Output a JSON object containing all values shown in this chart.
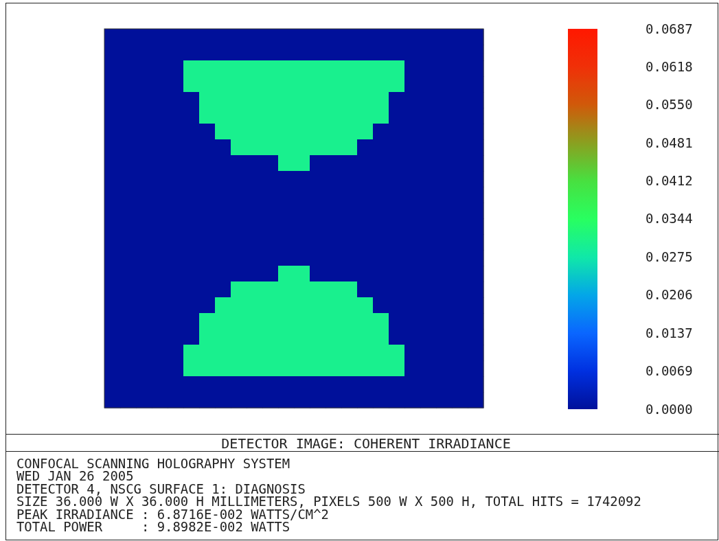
{
  "chart_data": {
    "type": "heatmap",
    "title": "DETECTOR IMAGE: COHERENT IRRADIANCE",
    "annotations": [
      "CONFOCAL SCANNING HOLOGRAPHY SYSTEM",
      "WED JAN 26 2005",
      "DETECTOR 4, NSCG SURFACE 1: DIAGNOSIS",
      "SIZE 36.000 W X 36.000 H MILLIMETERS, PIXELS 500 W X 500 H, TOTAL HITS = 1742092",
      "PEAK IRRADIANCE : 6.8716E-002 WATTS/CM^2",
      "TOTAL POWER     : 9.8982E-002 WATTS"
    ],
    "categories": [
      null,
      null,
      null,
      null,
      null,
      null,
      null,
      null,
      null,
      null,
      null,
      null,
      null,
      null,
      null,
      null,
      null,
      null,
      null,
      null,
      null,
      null,
      null,
      null
    ],
    "y_categories": [
      null,
      null,
      null,
      null,
      null,
      null,
      null,
      null,
      null,
      null,
      null,
      null,
      null,
      null,
      null,
      null,
      null,
      null,
      null,
      null,
      null,
      null,
      null,
      null
    ],
    "tick_labels": false,
    "clim": [
      0,
      0.0687
    ],
    "cticks": [
      {
        "value": 0,
        "label": "0.0000"
      },
      {
        "value": 0.0069,
        "label": "0.0069"
      },
      {
        "value": 0.0137,
        "label": "0.0137"
      },
      {
        "value": 0.0206,
        "label": "0.0206"
      },
      {
        "value": 0.0275,
        "label": "0.0275"
      },
      {
        "value": 0.0344,
        "label": "0.0344"
      },
      {
        "value": 0.0412,
        "label": "0.0412"
      },
      {
        "value": 0.0481,
        "label": "0.0481"
      },
      {
        "value": 0.055,
        "label": "0.0550"
      },
      {
        "value": 0.0618,
        "label": "0.0618"
      },
      {
        "value": 0.0687,
        "label": "0.0687"
      }
    ],
    "cells": [
      [
        0,
        0,
        0,
        0,
        0,
        0,
        0,
        0,
        0,
        0,
        0,
        0,
        0,
        0,
        0,
        0,
        0,
        0,
        0,
        0,
        0,
        0,
        0,
        0
      ],
      [
        0,
        0,
        0,
        0,
        0,
        0,
        0,
        0,
        0,
        0,
        0,
        0,
        0,
        0,
        0,
        0,
        0,
        0,
        0,
        0,
        0,
        0,
        0,
        0
      ],
      [
        0,
        0,
        0,
        0,
        0,
        0.03,
        0.03,
        0.03,
        0.03,
        0.03,
        0.03,
        0.03,
        0.03,
        0.03,
        0.03,
        0.03,
        0.03,
        0.03,
        0.03,
        0,
        0,
        0,
        0,
        0
      ],
      [
        0,
        0,
        0,
        0,
        0,
        0.03,
        0.03,
        0.03,
        0.03,
        0.03,
        0.03,
        0.03,
        0.03,
        0.03,
        0.03,
        0.03,
        0.03,
        0.03,
        0.03,
        0,
        0,
        0,
        0,
        0
      ],
      [
        0,
        0,
        0,
        0,
        0,
        0,
        0.03,
        0.03,
        0.03,
        0.03,
        0.03,
        0.03,
        0.03,
        0.03,
        0.03,
        0.03,
        0.03,
        0.03,
        0,
        0,
        0,
        0,
        0,
        0
      ],
      [
        0,
        0,
        0,
        0,
        0,
        0,
        0.03,
        0.03,
        0.03,
        0.03,
        0.03,
        0.03,
        0.03,
        0.03,
        0.03,
        0.03,
        0.03,
        0.03,
        0,
        0,
        0,
        0,
        0,
        0
      ],
      [
        0,
        0,
        0,
        0,
        0,
        0,
        0,
        0.03,
        0.03,
        0.03,
        0.03,
        0.03,
        0.03,
        0.03,
        0.03,
        0.03,
        0.03,
        0,
        0,
        0,
        0,
        0,
        0,
        0
      ],
      [
        0,
        0,
        0,
        0,
        0,
        0,
        0,
        0,
        0.03,
        0.03,
        0.03,
        0.03,
        0.03,
        0.03,
        0.03,
        0.03,
        0,
        0,
        0,
        0,
        0,
        0,
        0,
        0
      ],
      [
        0,
        0,
        0,
        0,
        0,
        0,
        0,
        0,
        0,
        0,
        0,
        0.03,
        0.03,
        0,
        0,
        0,
        0,
        0,
        0,
        0,
        0,
        0,
        0,
        0
      ],
      [
        0,
        0,
        0,
        0,
        0,
        0,
        0,
        0,
        0,
        0,
        0,
        0,
        0,
        0,
        0,
        0,
        0,
        0,
        0,
        0,
        0,
        0,
        0,
        0
      ],
      [
        0,
        0,
        0,
        0,
        0,
        0,
        0,
        0,
        0,
        0,
        0,
        0,
        0,
        0,
        0,
        0,
        0,
        0,
        0,
        0,
        0,
        0,
        0,
        0
      ],
      [
        0,
        0,
        0,
        0,
        0,
        0,
        0,
        0,
        0,
        0,
        0,
        0,
        0,
        0,
        0,
        0,
        0,
        0,
        0,
        0,
        0,
        0,
        0,
        0
      ],
      [
        0,
        0,
        0,
        0,
        0,
        0,
        0,
        0,
        0,
        0,
        0,
        0,
        0,
        0,
        0,
        0,
        0,
        0,
        0,
        0,
        0,
        0,
        0,
        0
      ],
      [
        0,
        0,
        0,
        0,
        0,
        0,
        0,
        0,
        0,
        0,
        0,
        0,
        0,
        0,
        0,
        0,
        0,
        0,
        0,
        0,
        0,
        0,
        0,
        0
      ],
      [
        0,
        0,
        0,
        0,
        0,
        0,
        0,
        0,
        0,
        0,
        0,
        0,
        0,
        0,
        0,
        0,
        0,
        0,
        0,
        0,
        0,
        0,
        0,
        0
      ],
      [
        0,
        0,
        0,
        0,
        0,
        0,
        0,
        0,
        0,
        0,
        0,
        0.03,
        0.03,
        0,
        0,
        0,
        0,
        0,
        0,
        0,
        0,
        0,
        0,
        0
      ],
      [
        0,
        0,
        0,
        0,
        0,
        0,
        0,
        0,
        0.03,
        0.03,
        0.03,
        0.03,
        0.03,
        0.03,
        0.03,
        0.03,
        0,
        0,
        0,
        0,
        0,
        0,
        0,
        0
      ],
      [
        0,
        0,
        0,
        0,
        0,
        0,
        0,
        0.03,
        0.03,
        0.03,
        0.03,
        0.03,
        0.03,
        0.03,
        0.03,
        0.03,
        0.03,
        0,
        0,
        0,
        0,
        0,
        0,
        0
      ],
      [
        0,
        0,
        0,
        0,
        0,
        0,
        0.03,
        0.03,
        0.03,
        0.03,
        0.03,
        0.03,
        0.03,
        0.03,
        0.03,
        0.03,
        0.03,
        0.03,
        0,
        0,
        0,
        0,
        0,
        0
      ],
      [
        0,
        0,
        0,
        0,
        0,
        0,
        0.03,
        0.03,
        0.03,
        0.03,
        0.03,
        0.03,
        0.03,
        0.03,
        0.03,
        0.03,
        0.03,
        0.03,
        0,
        0,
        0,
        0,
        0,
        0
      ],
      [
        0,
        0,
        0,
        0,
        0,
        0.03,
        0.03,
        0.03,
        0.03,
        0.03,
        0.03,
        0.03,
        0.03,
        0.03,
        0.03,
        0.03,
        0.03,
        0.03,
        0.03,
        0,
        0,
        0,
        0,
        0
      ],
      [
        0,
        0,
        0,
        0,
        0,
        0.03,
        0.03,
        0.03,
        0.03,
        0.03,
        0.03,
        0.03,
        0.03,
        0.03,
        0.03,
        0.03,
        0.03,
        0.03,
        0.03,
        0,
        0,
        0,
        0,
        0
      ],
      [
        0,
        0,
        0,
        0,
        0,
        0,
        0,
        0,
        0,
        0,
        0,
        0,
        0,
        0,
        0,
        0,
        0,
        0,
        0,
        0,
        0,
        0,
        0,
        0
      ],
      [
        0,
        0,
        0,
        0,
        0,
        0,
        0,
        0,
        0,
        0,
        0,
        0,
        0,
        0,
        0,
        0,
        0,
        0,
        0,
        0,
        0,
        0,
        0,
        0
      ]
    ]
  }
}
